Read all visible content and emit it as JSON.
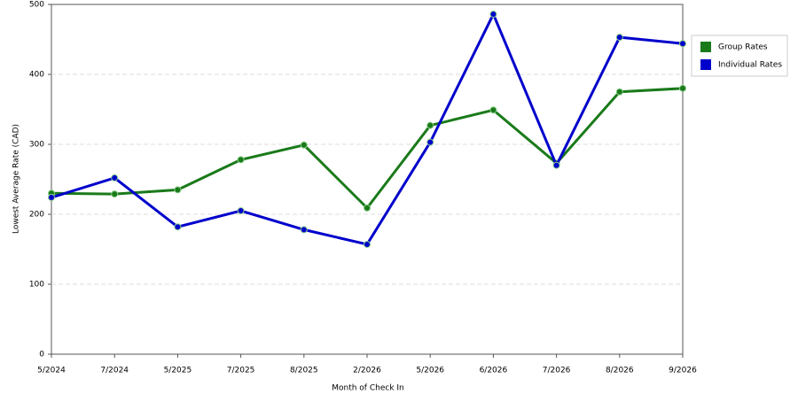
{
  "chart_data": {
    "type": "line",
    "x_label": "Month of Check In",
    "y_label": "Lowest Average Rate (CAD)",
    "categories": [
      "5/2024",
      "7/2024",
      "5/2025",
      "7/2025",
      "8/2025",
      "2/2026",
      "5/2026",
      "6/2026",
      "7/2026",
      "8/2026",
      "9/2026"
    ],
    "series": [
      {
        "name": "Group Rates",
        "color": "#1a7a1a",
        "values": [
          230,
          229,
          235,
          278,
          299,
          209,
          327,
          349,
          273,
          375,
          380
        ]
      },
      {
        "name": "Individual Rates",
        "color": "#0000cc",
        "values": [
          224,
          252,
          182,
          205,
          178,
          157,
          303,
          486,
          270,
          453,
          444
        ]
      }
    ],
    "ylim": [
      0,
      500
    ],
    "yticks": [
      0,
      100,
      200,
      300,
      400,
      500
    ],
    "grid": true,
    "legend": "right"
  }
}
